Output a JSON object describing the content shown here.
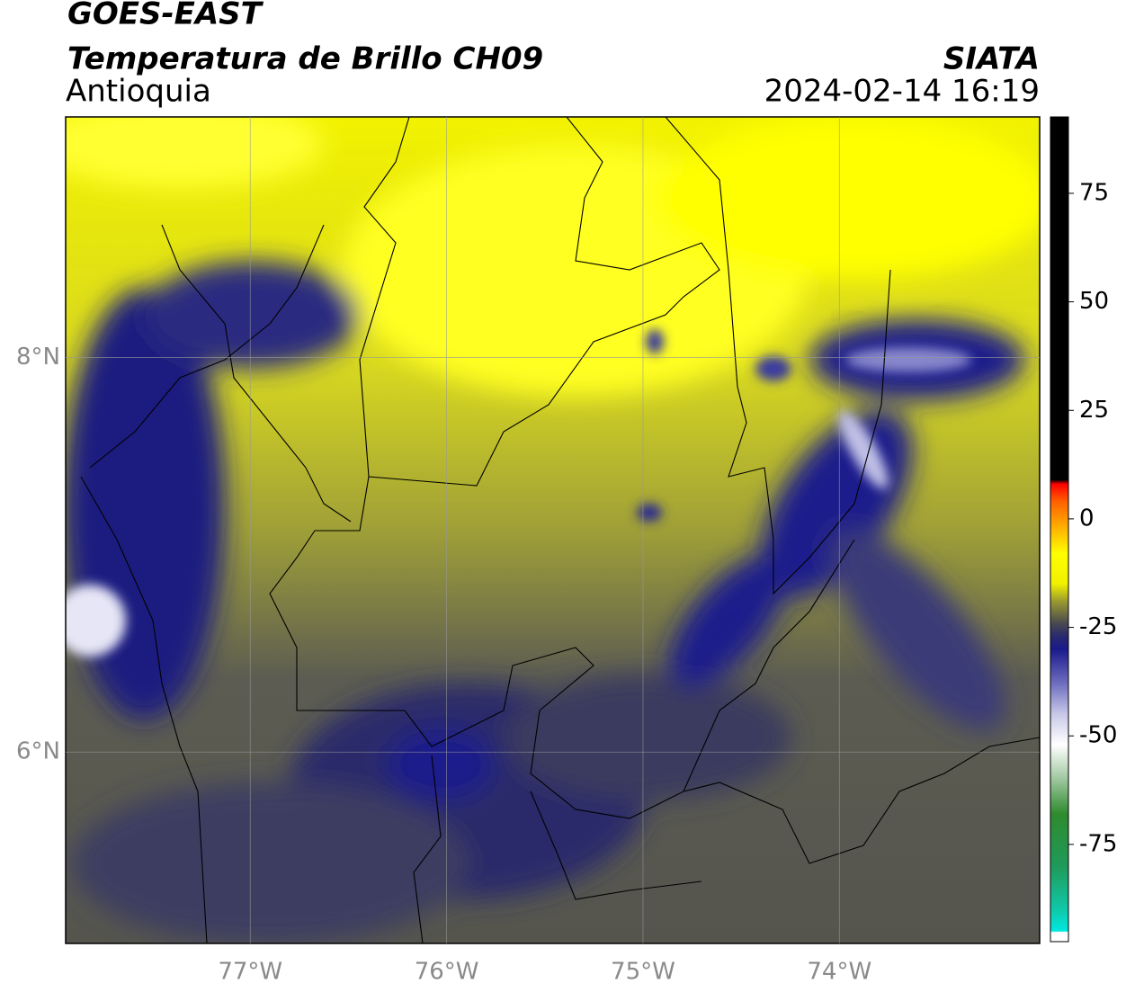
{
  "chart_data": {
    "type": "map",
    "title": "GOES-EAST",
    "subtitle": "Temperatura de Brillo CH09",
    "region": "Antioquia",
    "source": "SIATA",
    "timestamp": "2024-02-14 16:19",
    "xlim": [
      -77.94,
      -72.98
    ],
    "ylim": [
      5.03,
      9.22
    ],
    "xticks": [
      {
        "value": -77,
        "label": "77°W"
      },
      {
        "value": -76,
        "label": "76°W"
      },
      {
        "value": -75,
        "label": "75°W"
      },
      {
        "value": -74,
        "label": "74°W"
      }
    ],
    "yticks": [
      {
        "value": 6,
        "label": "6°N"
      },
      {
        "value": 8,
        "label": "8°N"
      }
    ],
    "grid": true,
    "colorbar": {
      "lim": [
        -97.4,
        92.6
      ],
      "ticks": [
        -75,
        -50,
        -25,
        0,
        25,
        50,
        75
      ],
      "stops": [
        {
          "value": -97.4,
          "color": "#ffffff"
        },
        {
          "value": -95.2,
          "color": "#ffffff"
        },
        {
          "value": -95,
          "color": "#00e8e0"
        },
        {
          "value": -90,
          "color": "#10c8a8"
        },
        {
          "value": -80,
          "color": "#1f9a5a"
        },
        {
          "value": -68,
          "color": "#2e8b2e"
        },
        {
          "value": -60,
          "color": "#9ec79e"
        },
        {
          "value": -52,
          "color": "#ffffff"
        },
        {
          "value": -45,
          "color": "#c8c8e8"
        },
        {
          "value": -38,
          "color": "#6f6fc0"
        },
        {
          "value": -30,
          "color": "#1a1a8c"
        },
        {
          "value": -27,
          "color": "#2a2a6e"
        },
        {
          "value": -24,
          "color": "#4a4a4e"
        },
        {
          "value": -19,
          "color": "#9a9a30"
        },
        {
          "value": -15,
          "color": "#f0f000"
        },
        {
          "value": -8,
          "color": "#ffff00"
        },
        {
          "value": -2,
          "color": "#ffb000"
        },
        {
          "value": 4,
          "color": "#ff6000"
        },
        {
          "value": 8,
          "color": "#ff0000"
        },
        {
          "value": 9,
          "color": "#000000"
        },
        {
          "value": 92.6,
          "color": "#000000"
        }
      ]
    }
  }
}
